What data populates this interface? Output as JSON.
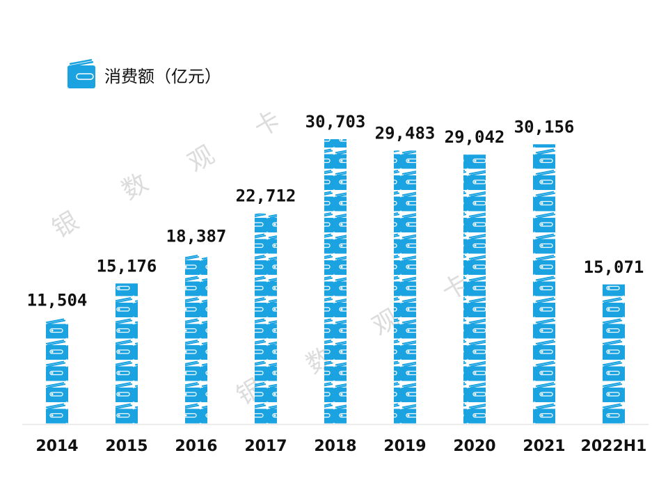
{
  "chart_data": {
    "type": "bar",
    "series": [
      {
        "name": "消费额（亿元）",
        "color": "#1aa3e0",
        "values": [
          11504,
          15176,
          18387,
          22712,
          30703,
          29483,
          29042,
          30156,
          15071
        ],
        "value_labels": [
          "11,504",
          "15,176",
          "18,387",
          "22,712",
          "30,703",
          "29,483",
          "29,042",
          "30,156",
          "15,071"
        ]
      }
    ],
    "categories": [
      "2014",
      "2015",
      "2016",
      "2017",
      "2018",
      "2019",
      "2020",
      "2021",
      "2022H1"
    ],
    "ylim": [
      0,
      34000
    ],
    "watermark": [
      "银",
      "数",
      "观",
      "卡"
    ]
  }
}
